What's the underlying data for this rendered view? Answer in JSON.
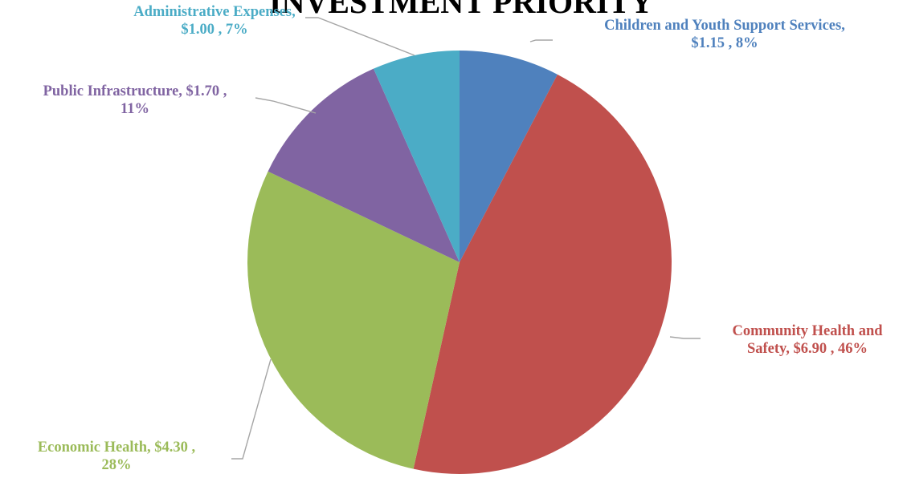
{
  "chart_data": {
    "type": "pie",
    "title": "INVESTMENT PRIORITY",
    "start_angle_deg": 0,
    "direction": "clockwise",
    "slices": [
      {
        "category": "Children and Youth Support Services",
        "value": 1.15,
        "percent": 8,
        "color": "#4f81bd",
        "label_color": "#4f81bd",
        "label_lines": [
          "Children and Youth Support Services,",
          "$1.15 , 8%"
        ]
      },
      {
        "category": "Community Health and Safety",
        "value": 6.9,
        "percent": 46,
        "color": "#c0504d",
        "label_color": "#c0504d",
        "label_lines": [
          "Community Health and",
          "Safety,  $6.90 , 46%"
        ]
      },
      {
        "category": "Economic Health",
        "value": 4.3,
        "percent": 28,
        "color": "#9bbb59",
        "label_color": "#9bbb59",
        "label_lines": [
          "Economic Health,  $4.30 ,",
          "28%"
        ]
      },
      {
        "category": "Public Infrastructure",
        "value": 1.7,
        "percent": 11,
        "color": "#8064a2",
        "label_color": "#8064a2",
        "label_lines": [
          "Public Infrastructure,  $1.70 ,",
          "11%"
        ]
      },
      {
        "category": "Administrative Expenses",
        "value": 1.0,
        "percent": 7,
        "color": "#4bacc6",
        "label_color": "#4bacc6",
        "label_lines": [
          "Administrative Expenses,",
          "$1.00 , 7%"
        ]
      }
    ]
  }
}
